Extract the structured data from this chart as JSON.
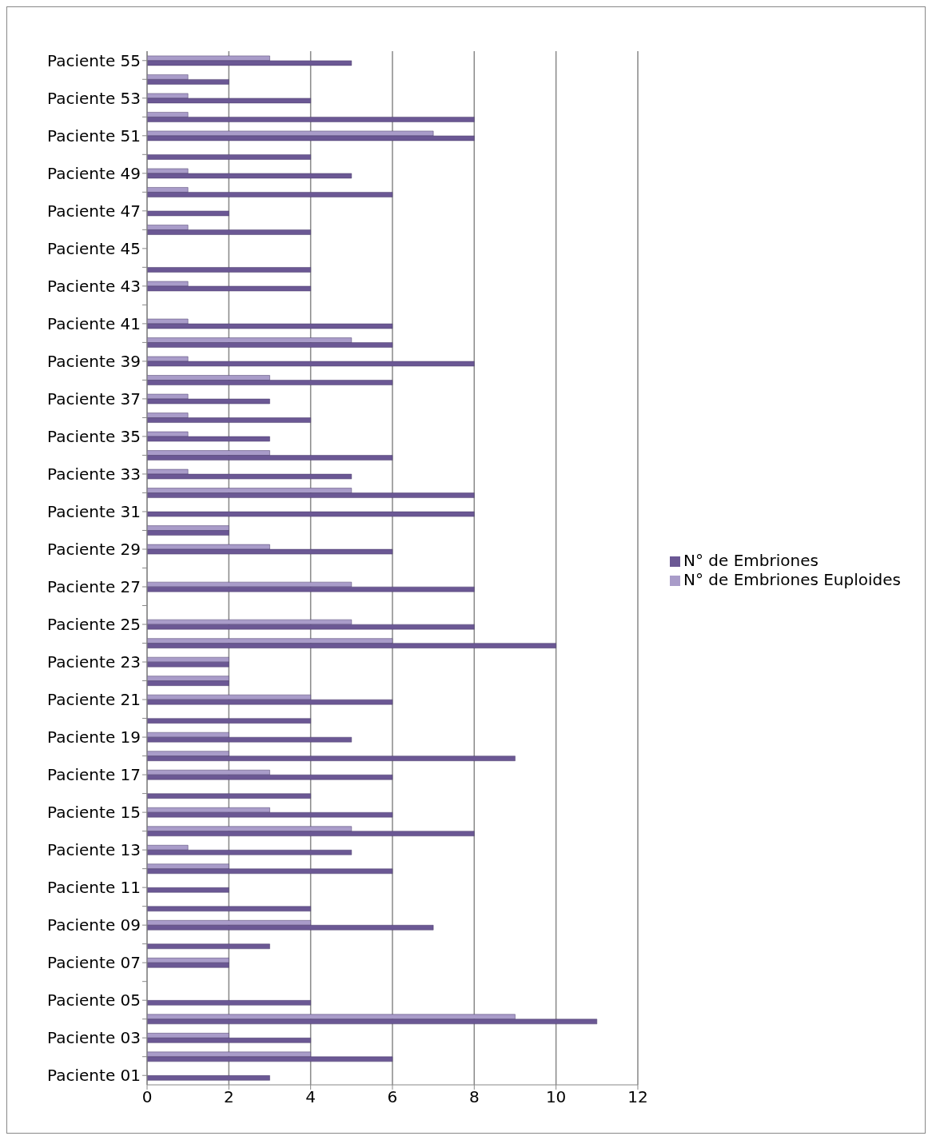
{
  "chart_data": {
    "type": "bar",
    "orientation": "horizontal",
    "categories": [
      "Paciente 55",
      null,
      "Paciente 53",
      null,
      "Paciente 51",
      null,
      "Paciente 49",
      null,
      "Paciente 47",
      null,
      "Paciente 45",
      null,
      "Paciente 43",
      null,
      "Paciente 41",
      null,
      "Paciente 39",
      null,
      "Paciente 37",
      null,
      "Paciente 35",
      null,
      "Paciente 33",
      null,
      "Paciente 31",
      null,
      "Paciente 29",
      null,
      "Paciente 27",
      null,
      "Paciente 25",
      null,
      "Paciente 23",
      null,
      "Paciente 21",
      null,
      "Paciente 19",
      null,
      "Paciente 17",
      null,
      "Paciente 15",
      null,
      "Paciente 13",
      null,
      "Paciente 11",
      null,
      "Paciente 09",
      null,
      "Paciente 07",
      null,
      "Paciente 05",
      null,
      "Paciente 03",
      null,
      "Paciente 01"
    ],
    "series": [
      {
        "name": "N° de Embriones Euploides",
        "color": "#a99cc9",
        "values": [
          3,
          1,
          1,
          1,
          7,
          0,
          1,
          1,
          0,
          1,
          0,
          0,
          1,
          0,
          1,
          5,
          1,
          3,
          1,
          1,
          1,
          3,
          1,
          5,
          0,
          2,
          3,
          0,
          5,
          0,
          5,
          6,
          2,
          2,
          4,
          0,
          2,
          2,
          3,
          0,
          3,
          5,
          1,
          2,
          0,
          0,
          4,
          0,
          2,
          0,
          0,
          9,
          2,
          4,
          0
        ]
      },
      {
        "name": "N° de Embriones",
        "color": "#6b5894",
        "values": [
          5,
          2,
          4,
          8,
          8,
          4,
          5,
          6,
          2,
          4,
          0,
          4,
          4,
          0,
          6,
          6,
          8,
          6,
          3,
          4,
          3,
          6,
          5,
          8,
          8,
          2,
          6,
          0,
          8,
          0,
          8,
          10,
          2,
          2,
          6,
          4,
          5,
          9,
          6,
          4,
          6,
          8,
          5,
          6,
          2,
          4,
          7,
          3,
          2,
          0,
          4,
          11,
          4,
          6,
          3
        ]
      }
    ],
    "xlim": [
      0,
      12
    ],
    "xticks": [
      0,
      2,
      4,
      6,
      8,
      10,
      12
    ],
    "grid": "x",
    "legend": "right"
  }
}
